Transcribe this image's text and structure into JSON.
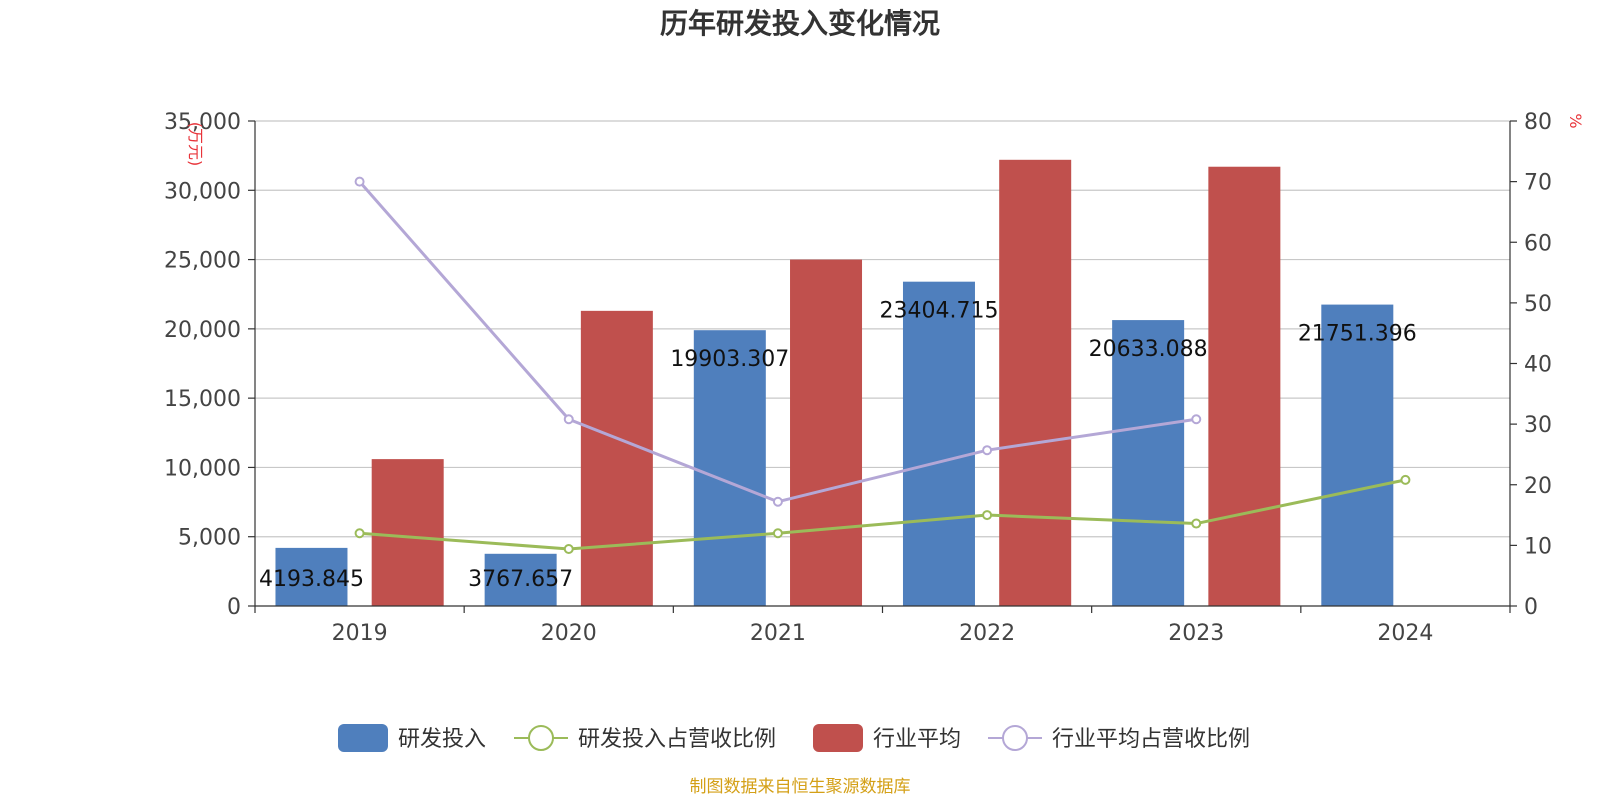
{
  "chart_data": {
    "type": "bar",
    "title": "历年研发投入变化情况",
    "categories": [
      "2019",
      "2020",
      "2021",
      "2022",
      "2023",
      "2024"
    ],
    "y_left": {
      "unit": "(万元)",
      "min": 0,
      "max": 35000,
      "ticks": [
        "0",
        "5,000",
        "10,000",
        "15,000",
        "20,000",
        "25,000",
        "30,000",
        "35,000"
      ]
    },
    "y_right": {
      "unit": "%",
      "min": 0,
      "max": 80,
      "ticks": [
        "0",
        "10",
        "20",
        "30",
        "40",
        "50",
        "60",
        "70",
        "80"
      ]
    },
    "series": [
      {
        "name": "研发投入",
        "kind": "bar",
        "axis": "left",
        "color": "#4f7fbd",
        "values": [
          4193.845,
          3767.657,
          19903.307,
          23404.715,
          20633.088,
          21751.396
        ],
        "labels": [
          "4193.845",
          "3767.657",
          "19903.307",
          "23404.715",
          "20633.088",
          "21751.396"
        ]
      },
      {
        "name": "研发投入占营收比例",
        "kind": "line",
        "axis": "right",
        "color": "#9bbb59",
        "values": [
          12.0,
          9.4,
          12.0,
          15.0,
          13.6,
          20.8
        ]
      },
      {
        "name": "行业平均",
        "kind": "bar",
        "axis": "left",
        "color": "#c0504d",
        "values": [
          10600,
          21300,
          25000,
          32200,
          31700,
          null
        ]
      },
      {
        "name": "行业平均占营收比例",
        "kind": "line",
        "axis": "right",
        "color": "#b4a7d6",
        "values": [
          70.0,
          30.8,
          17.2,
          25.7,
          30.8,
          null
        ]
      }
    ],
    "grid": true,
    "legend_position": "bottom"
  },
  "source": "制图数据来自恒生聚源数据库"
}
